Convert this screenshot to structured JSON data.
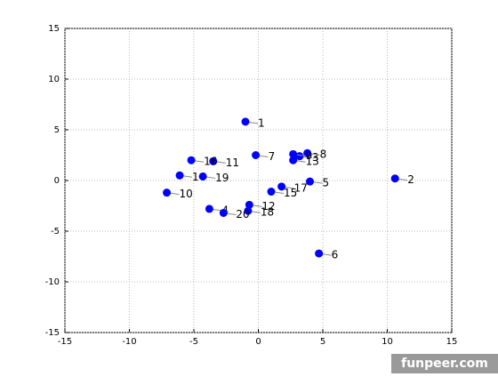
{
  "chart_data": {
    "type": "scatter",
    "x": [
      -1.0,
      10.6,
      3.2,
      -3.8,
      4.0,
      4.7,
      -0.2,
      3.8,
      2.7,
      -7.1,
      -3.5,
      -0.7,
      2.7,
      -6.1,
      1.0,
      -5.2,
      1.8,
      -0.8,
      -4.3,
      -2.7
    ],
    "values": [
      5.8,
      0.2,
      2.4,
      -2.8,
      -0.1,
      -7.2,
      2.5,
      2.7,
      2.6,
      -1.2,
      1.9,
      -2.4,
      2.0,
      0.5,
      -1.1,
      2.0,
      -0.6,
      -3.0,
      0.4,
      -3.2
    ],
    "point_labels": [
      "1",
      "2",
      "3",
      "4",
      "5",
      "6",
      "7",
      "8",
      "9",
      "10",
      "11",
      "12",
      "13",
      "14",
      "15",
      "16",
      "17",
      "18",
      "19",
      "20"
    ],
    "color": "#0000ff",
    "xlim": [
      -15,
      15
    ],
    "xticks": [
      -15,
      -10,
      -5,
      0,
      5,
      10,
      15
    ],
    "ylim": [
      -15,
      15
    ],
    "yticks": [
      -15,
      -10,
      -5,
      0,
      5,
      10,
      15
    ],
    "grid": true,
    "watermark": "funpeer.com"
  }
}
